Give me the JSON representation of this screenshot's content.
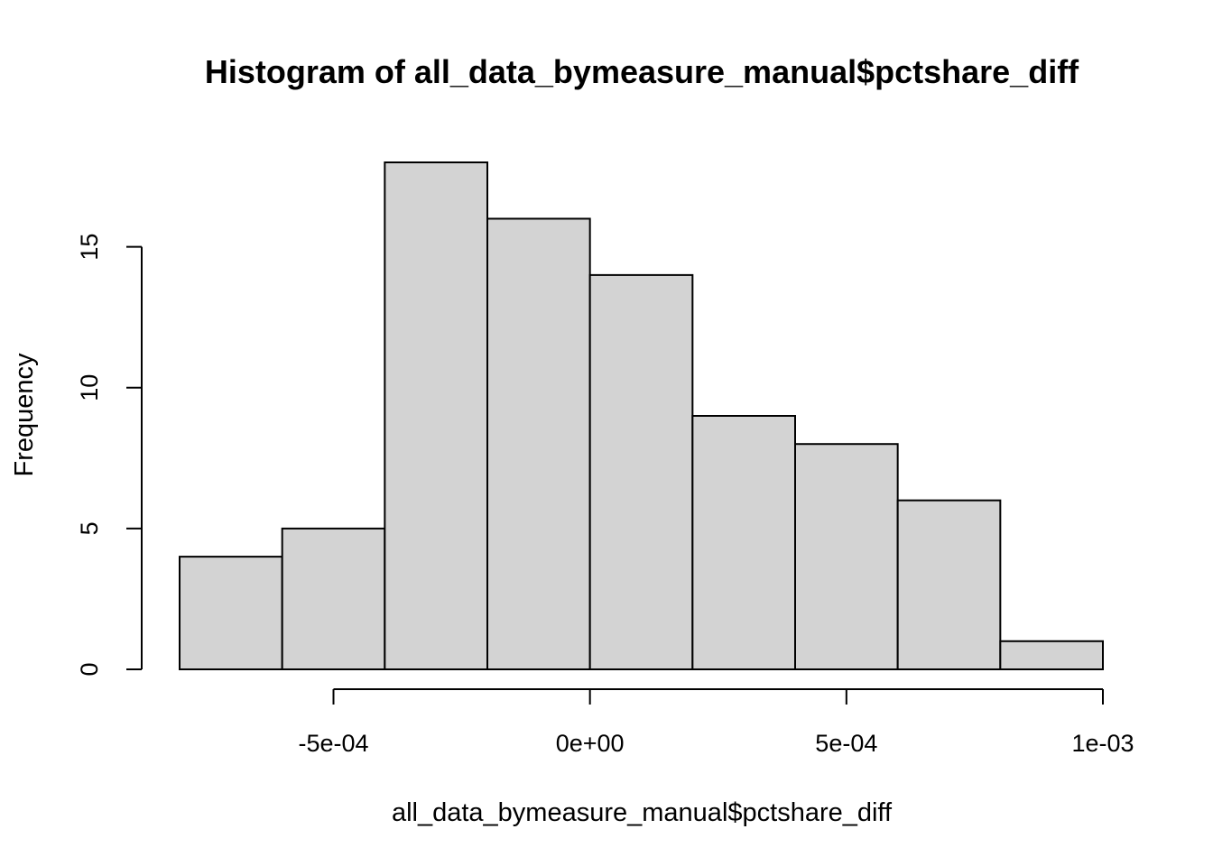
{
  "chart_data": {
    "type": "bar",
    "title": "Histogram of all_data_bymeasure_manual$pctshare_diff",
    "xlabel": "all_data_bymeasure_manual$pctshare_diff",
    "ylabel": "Frequency",
    "bins": [
      {
        "from": -0.0008,
        "to": -0.0006,
        "count": 4
      },
      {
        "from": -0.0006,
        "to": -0.0004,
        "count": 5
      },
      {
        "from": -0.0004,
        "to": -0.0002,
        "count": 18
      },
      {
        "from": -0.0002,
        "to": 0.0,
        "count": 16
      },
      {
        "from": 0.0,
        "to": 0.0002,
        "count": 14
      },
      {
        "from": 0.0002,
        "to": 0.0004,
        "count": 9
      },
      {
        "from": 0.0004,
        "to": 0.0006,
        "count": 8
      },
      {
        "from": 0.0006,
        "to": 0.0008,
        "count": 6
      },
      {
        "from": 0.0008,
        "to": 0.001,
        "count": 1
      }
    ],
    "xlim": [
      -0.0008,
      0.001
    ],
    "ylim": [
      0,
      18
    ],
    "x_ticks": [
      {
        "value": -0.0005,
        "label": "-5e-04"
      },
      {
        "value": 0.0,
        "label": "0e+00"
      },
      {
        "value": 0.0005,
        "label": "5e-04"
      },
      {
        "value": 0.001,
        "label": "1e-03"
      }
    ],
    "y_ticks": [
      {
        "value": 0,
        "label": "0"
      },
      {
        "value": 5,
        "label": "5"
      },
      {
        "value": 10,
        "label": "10"
      },
      {
        "value": 15,
        "label": "15"
      }
    ],
    "bar_color": "#d3d3d3",
    "grid": false,
    "legend": "none"
  }
}
